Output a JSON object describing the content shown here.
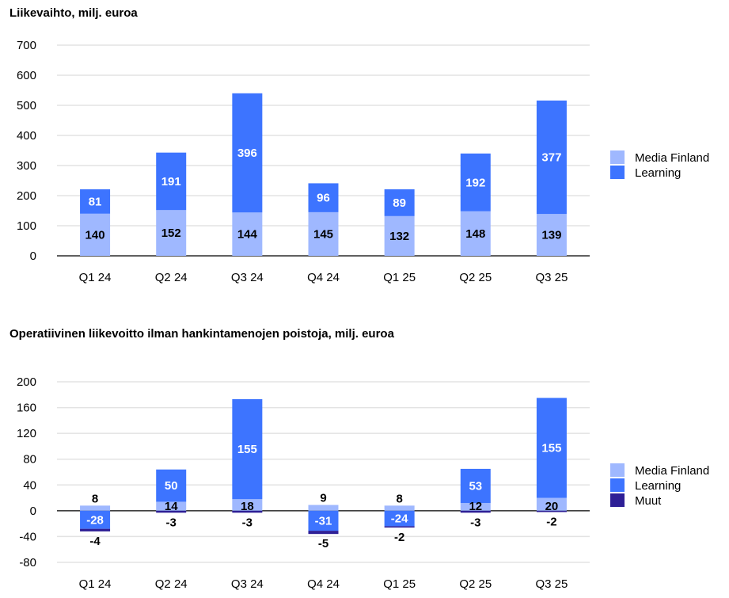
{
  "chart_data": [
    {
      "type": "bar",
      "stacked": true,
      "title": "Liikevaihto, milj. euroa",
      "categories": [
        "Q1 24",
        "Q2 24",
        "Q3 24",
        "Q4 24",
        "Q1 25",
        "Q2 25",
        "Q3 25"
      ],
      "series": [
        {
          "name": "Media Finland",
          "color": "#9fb8ff",
          "values": [
            140,
            152,
            144,
            145,
            132,
            148,
            139
          ]
        },
        {
          "name": "Learning",
          "color": "#3d74ff",
          "values": [
            81,
            191,
            396,
            96,
            89,
            192,
            377
          ]
        }
      ],
      "ylim": [
        0,
        700
      ],
      "yticks": [
        0,
        100,
        200,
        300,
        400,
        500,
        600,
        700
      ],
      "grid": true,
      "legend": "right"
    },
    {
      "type": "bar",
      "stacked": true,
      "title": "Operatiivinen liikevoitto ilman hankintamenojen poistoja, milj. euroa",
      "categories": [
        "Q1 24",
        "Q2 24",
        "Q3 24",
        "Q4 24",
        "Q1 25",
        "Q2 25",
        "Q3 25"
      ],
      "series": [
        {
          "name": "Media Finland",
          "color": "#9fb8ff",
          "values": [
            8,
            14,
            18,
            9,
            8,
            12,
            20
          ]
        },
        {
          "name": "Learning",
          "color": "#3d74ff",
          "values": [
            -28,
            50,
            155,
            -31,
            -24,
            53,
            155
          ]
        },
        {
          "name": "Muut",
          "color": "#2e1f96",
          "values": [
            -4,
            -3,
            -3,
            -5,
            -2,
            -3,
            -2
          ]
        }
      ],
      "ylim": [
        -80,
        200
      ],
      "yticks": [
        -80,
        -40,
        0,
        40,
        80,
        120,
        160,
        200
      ],
      "grid": true,
      "legend": "right"
    }
  ]
}
